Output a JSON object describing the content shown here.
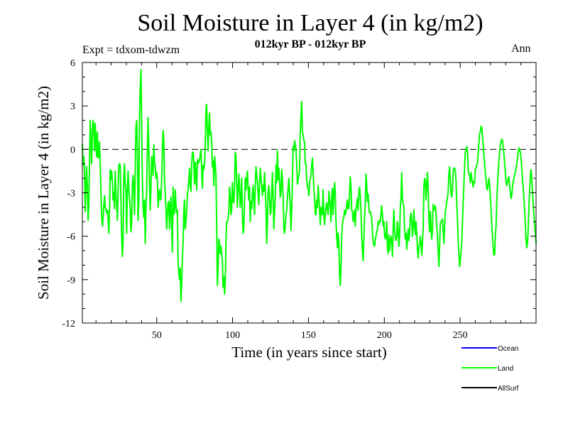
{
  "header": {
    "title": "Soil Moisture in Layer 4 (in kg/m2)",
    "subtitle": "012kyr BP - 012kyr BP",
    "experiment": "Expt = tdxom-tdwzm",
    "period": "Ann"
  },
  "chart_data": {
    "type": "line",
    "title": "Soil Moisture in Layer 4 (in kg/m2)",
    "xlabel": "Time (in years since start)",
    "ylabel": "Soil Moisture in Layer 4 (in kg/m2)",
    "xlim": [
      1,
      300
    ],
    "ylim": [
      -12,
      6
    ],
    "xticks": [
      50,
      100,
      150,
      200,
      250
    ],
    "xtick_labels": [
      "50",
      "100",
      "150",
      "200",
      "250"
    ],
    "yticks": [
      6,
      3,
      0,
      -3,
      -6,
      -9,
      -12
    ],
    "ytick_labels": [
      "6",
      "3",
      "0",
      "-3",
      "-6",
      "-9",
      "-12"
    ],
    "zero_line": "dashed",
    "legend": {
      "placement": "bottom-right",
      "entries": [
        {
          "name": "Ocean",
          "color": "#0000ff"
        },
        {
          "name": "Land",
          "color": "#00ff00"
        },
        {
          "name": "AllSurf",
          "color": "#000000"
        }
      ]
    },
    "series": [
      {
        "name": "Land",
        "color": "#00ff00",
        "x_start": 1,
        "x_step": 1,
        "values": [
          0.4,
          -1.1,
          -0.5,
          -1.5,
          -4.3,
          -2.5,
          -1.2,
          -2.6,
          -4.9,
          -3.9,
          -1.0,
          2.0,
          0.5,
          -1.0,
          1.2,
          2.0,
          1.5,
          -0.1,
          1.8,
          0.5,
          -0.5,
          1.2,
          -0.6,
          -0.5,
          0.5,
          -1.0,
          -3.0,
          -4.6,
          -5.3,
          -4.8,
          -3.9,
          -3.2,
          -4.0,
          -4.1,
          -4.4,
          -4.2,
          -4.8,
          -5.8,
          -4.3,
          -1.4,
          -2.1,
          -1.5,
          -2.1,
          -3.5,
          -3.0,
          -4.1,
          -1.5,
          -3.0,
          -3.8,
          -4.9,
          -3.0,
          -1.1,
          -1.0,
          -1.1,
          -3.5,
          -6.0,
          -7.4,
          -6.4,
          -1.9,
          -1.0,
          -2.4,
          -2.8,
          -5.8,
          -2.8,
          -1.5,
          -2.7,
          -3.4,
          -4.1,
          -5.7,
          -5.1,
          -2.5,
          -1.8,
          -2.6,
          -4.5,
          -1.4,
          1.5,
          2.0,
          0.0,
          -4.9,
          -3.5,
          2.3,
          4.2,
          5.5,
          2.0,
          -2.1,
          -4.0,
          -4.7,
          -3.5,
          -6.5,
          -4.0,
          -2.9,
          0.0,
          2.2,
          0.3,
          -2.5,
          -4.2,
          -2.6,
          -0.5,
          -0.6,
          -1.8,
          0.3,
          -0.9,
          -1.1,
          -2.0,
          -1.6,
          -2.1,
          -4.0,
          -3.2,
          -2.8,
          -3.5,
          -3.4,
          -2.1,
          -0.1,
          1.3,
          0.6,
          -2.1,
          -3.0,
          -4.2,
          -5.5,
          -4.5,
          -3.7,
          -3.6,
          -5.5,
          -4.0,
          -3.3,
          -5.3,
          -7.1,
          -2.6,
          -4.5,
          -4.3,
          -2.8,
          -3.8,
          -4.4,
          -4.2,
          -7.8,
          -8.6,
          -9.0,
          -8.2,
          -10.5,
          -9.3,
          -7.5,
          -6.5,
          -4.3,
          -3.5,
          -5.5,
          -5.0,
          -4.3,
          -3.1,
          -2.8,
          -2.2,
          -1.3,
          -2.5,
          -2.9,
          -1.0,
          -0.2,
          -0.2,
          -0.9,
          -2.4,
          -0.9,
          -1.8,
          -2.8,
          -0.7,
          -1.0,
          -0.9,
          -0.7,
          -0.4,
          0.0,
          -1.5,
          -2.7,
          -1.1,
          -1.4,
          -1.0,
          0.4,
          2.7,
          3.1,
          1.2,
          -0.1,
          1.6,
          2.5,
          1.0,
          1.2,
          0.6,
          -1.2,
          -0.8,
          -2.5,
          -0.5,
          -1.0,
          -1.8,
          -5.3,
          -9.4,
          -8.1,
          -6.2,
          -6.5,
          -7.2,
          -6.7,
          -7.4,
          -7.6,
          -9.5,
          -8.8,
          -10.0,
          -9.1,
          -6.3,
          -5.0,
          -5.0,
          -4.8,
          -4.3,
          -2.6,
          -3.2,
          -4.5,
          -4.2,
          -2.3,
          -3.5,
          -3.7,
          -2.5,
          -0.2,
          -0.5,
          -2.3,
          -4.0,
          -2.9,
          -1.7,
          -2.6,
          -4.0,
          -3.4,
          -2.0,
          -4.5,
          -5.8,
          -5.5,
          -3.5,
          -2.0,
          -2.8,
          -2.0,
          -1.5,
          -2.7,
          -3.5,
          -2.6,
          -5.0,
          -3.6,
          -4.1,
          -3.1,
          -2.5,
          -3.5,
          -4.5,
          -2.5,
          -1.2,
          -1.7,
          -2.2,
          -3.0,
          -3.8,
          -2.5,
          -1.3,
          -2.0,
          -2.4,
          -3.2,
          -2.5,
          -2.9,
          -1.6,
          -2.7,
          -4.1,
          -6.5,
          -5.0,
          -3.0,
          -2.5,
          -3.3,
          -4.5,
          -4.3,
          -3.0,
          -1.6,
          -3.2,
          -5.5,
          -4.3,
          -3.4,
          -1.1,
          -2.3,
          -0.1,
          -2.1,
          -1.3,
          -2.2,
          -3.3,
          -3.0,
          -1.4,
          -2.0,
          -3.2,
          -5.5,
          -5.8,
          -5.3,
          -4.5,
          -4.2,
          -3.4,
          -2.7,
          -2.0,
          -3.0,
          -3.9,
          -5.6,
          -4.2,
          -2.1,
          0.2,
          -0.1,
          0.6,
          0.3,
          0.0,
          -1.0,
          -2.4,
          -2.1,
          -1.8,
          -1.5,
          1.2,
          2.4,
          3.3,
          1.2,
          1.0,
          0.6,
          0.5,
          -1.0,
          -1.0,
          -2.1,
          -2.6,
          -2.7,
          -3.2,
          -2.3,
          -2.0,
          -1.8,
          -1.1,
          -0.6,
          -1.6,
          -2.8,
          -3.3,
          -4.5,
          -4.5,
          -3.5,
          -4.0,
          -2.5,
          -3.3,
          -4.2,
          -5.2,
          -4.0,
          -4.4,
          -4.5,
          -2.8,
          -4.5,
          -5.2,
          -4.5,
          -4.0,
          -3.7,
          -4.2,
          -4.5,
          -2.9,
          -3.5,
          -4.0,
          -5.0,
          -3.3,
          -2.7,
          -4.5,
          -3.0,
          -2.3,
          -3.1,
          -5.0,
          -6.0,
          -6.8,
          -5.8,
          -6.5,
          -8.6,
          -9.4,
          -8.2,
          -6.0,
          -5.2,
          -4.8,
          -4.7,
          -4.2,
          -4.5,
          -4.3,
          -3.8,
          -3.5,
          -4.1,
          -4.1,
          -3.0,
          -1.9,
          -2.7,
          -4.2,
          -4.3,
          -5.0,
          -4.6,
          -4.2,
          -5.3,
          -4.1,
          -3.8,
          -3.4,
          -4.2,
          -3.0,
          -2.6,
          -3.2,
          -4.4,
          -6.0,
          -7.0,
          -7.7,
          -6.2,
          -4.6,
          -3.7,
          -1.7,
          -2.5,
          -3.6,
          -3.1,
          -4.0,
          -4.4,
          -4.3,
          -4.5,
          -4.8,
          -5.6,
          -6.4,
          -6.6,
          -6.7,
          -6.2,
          -6.0,
          -5.7,
          -5.5,
          -5.0,
          -5.2,
          -4.9,
          -5.0,
          -4.4,
          -3.9,
          -4.5,
          -5.3,
          -5.0,
          -5.9,
          -6.2,
          -5.9,
          -5.0,
          -6.8,
          -7.2,
          -5.9,
          -7.0,
          -6.4,
          -6.0,
          -6.3,
          -7.4,
          -5.5,
          -4.2,
          -5.4,
          -6.1,
          -6.3,
          -6.0,
          -5.0,
          -5.5,
          -6.7,
          -6.0,
          -4.1,
          -3.3,
          -1.6,
          -3.5,
          -3.8,
          -4.0,
          -5.5,
          -6.2,
          -5.8,
          -6.9,
          -6.2,
          -5.5,
          -6.3,
          -5.8,
          -4.7,
          -4.4,
          -5.0,
          -6.0,
          -5.3,
          -4.2,
          -5.3,
          -5.9,
          -5.0,
          -5.8,
          -6.9,
          -7.5,
          -6.8,
          -6.6,
          -6.0,
          -6.5,
          -7.3,
          -6.5,
          -5.4,
          -2.6,
          -2.0,
          -2.2,
          -3.5,
          -2.5,
          -1.6,
          -2.7,
          -4.8,
          -5.7,
          -4.3,
          -5.4,
          -6.2,
          -5.6,
          -3.8,
          -4.2,
          -4.1,
          -3.9,
          -4.5,
          -5.3,
          -6.0,
          -7.0,
          -8.1,
          -6.8,
          -5.1,
          -5.0,
          -5.0,
          -4.8,
          -5.7,
          -6.5,
          -5.3,
          -4.3,
          -4.0,
          -3.7,
          -3.3,
          -3.0,
          -1.7,
          -1.2,
          -2.0,
          -3.0,
          -3.3,
          -2.8,
          -1.5,
          -1.3,
          -1.3,
          -1.5,
          -2.2,
          -3.8,
          -4.7,
          -6.4,
          -7.2,
          -8.1,
          -7.7,
          -7.1,
          -6.4,
          -5.0,
          -3.7,
          -2.5,
          -1.1,
          -0.2,
          0.0,
          0.2,
          -0.2,
          -1.4,
          -1.7,
          -1.8,
          -2.3,
          -1.6,
          -2.0,
          -2.3,
          -2.6,
          -2.2,
          -2.3,
          -1.4,
          -1.3,
          -1.1,
          -0.9,
          -0.3,
          0.4,
          1.1,
          1.2,
          1.6,
          1.5,
          0.9,
          0.3,
          -0.5,
          -1.0,
          -1.6,
          -2.1,
          -2.7,
          -2.8,
          -2.4,
          -2.0,
          -2.5,
          -3.3,
          -4.1,
          -5.2,
          -6.1,
          -6.8,
          -7.3,
          -7.3,
          -6.0,
          -5.3,
          -3.8,
          -2.5,
          -1.5,
          -0.8,
          -0.2,
          0.3,
          0.5,
          0.7,
          0.6,
          0.2,
          -0.3,
          -0.9,
          -1.6,
          -2.3,
          -2.5,
          -2.3,
          -2.0,
          -1.9,
          -2.5,
          -3.0,
          -3.4,
          -3.2,
          -2.6,
          -2.2,
          -2.0,
          -1.8,
          -1.6,
          -1.3,
          -1.0,
          -0.6,
          -0.2,
          0.1,
          0.0,
          -0.2,
          -0.6,
          -1.3,
          -2.0,
          -2.6,
          -3.4,
          -4.2,
          -5.1,
          -6.3,
          -6.8,
          -6.4,
          -5.6,
          -4.1,
          -2.9,
          -1.8,
          -1.4,
          -2.0,
          -2.8,
          -3.7,
          -4.6,
          -5.1,
          -5.8,
          -6.5
        ]
      }
    ]
  }
}
